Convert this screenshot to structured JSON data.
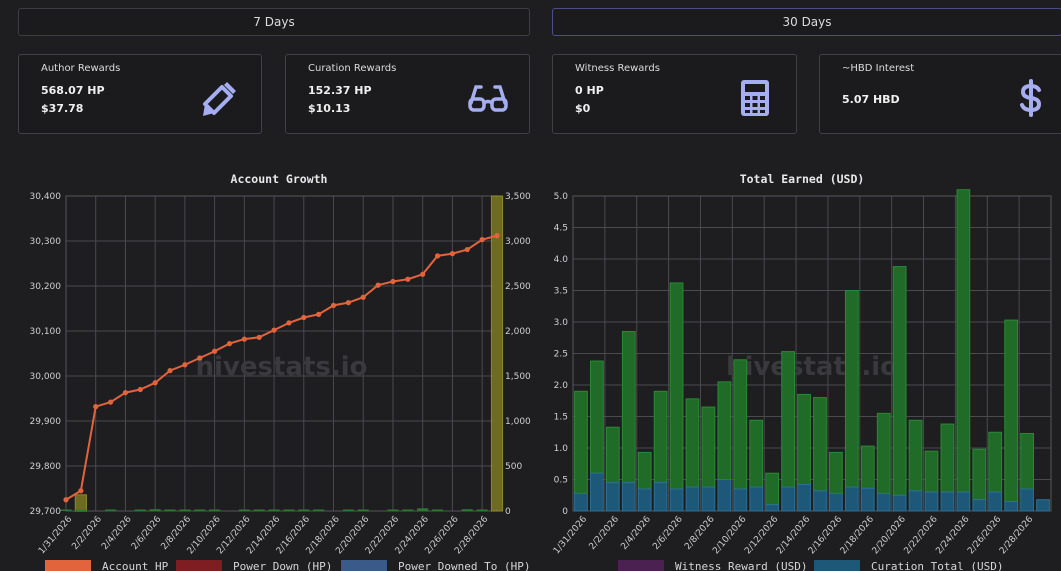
{
  "tabs": [
    {
      "label": "7 Days",
      "active": false
    },
    {
      "label": "30 Days",
      "active": true
    }
  ],
  "cards": [
    {
      "label": "Author Rewards",
      "line1": "568.07 HP",
      "line2": "$37.78",
      "icon": "pencil-icon"
    },
    {
      "label": "Curation Rewards",
      "line1": "152.37 HP",
      "line2": "$10.13",
      "icon": "glasses-icon"
    },
    {
      "label": "Witness Rewards",
      "line1": "0 HP",
      "line2": "$0",
      "icon": "calculator-icon"
    },
    {
      "label": "~HBD Interest",
      "line1": "5.07 HBD",
      "line2": "",
      "icon": "dollar-icon"
    }
  ],
  "colors": {
    "accent_icon": "#a5aef0",
    "account_hp": "#e2643c",
    "power_down": "#7e1e22",
    "power_downed_to": "#3a5a8a",
    "earned_green": "#1f6b27",
    "earned_curation": "#1e5878",
    "witness": "#4a2150",
    "hp_bar_olive": "#77731f"
  },
  "watermark": "hivestats.io",
  "chart_data": [
    {
      "type": "line",
      "title": "Account Growth",
      "x": [
        "1/31/2026",
        "2/1/2026",
        "2/2/2026",
        "2/3/2026",
        "2/4/2026",
        "2/5/2026",
        "2/6/2026",
        "2/7/2026",
        "2/8/2026",
        "2/9/2026",
        "2/10/2026",
        "2/11/2026",
        "2/12/2026",
        "2/13/2026",
        "2/14/2026",
        "2/15/2026",
        "2/16/2026",
        "2/17/2026",
        "2/18/2026",
        "2/19/2026",
        "2/20/2026",
        "2/21/2026",
        "2/22/2026",
        "2/23/2026",
        "2/24/2026",
        "2/25/2026",
        "2/26/2026",
        "2/27/2026",
        "2/28/2026",
        "3/1/2026"
      ],
      "x_tick_labels": [
        "1/31/2026",
        "2/2/2026",
        "2/4/2026",
        "2/6/2026",
        "2/8/2026",
        "2/10/2026",
        "2/12/2026",
        "2/14/2026",
        "2/16/2026",
        "2/18/2026",
        "2/20/2026",
        "2/22/2026",
        "2/24/2026",
        "2/26/2026",
        "2/28/2026"
      ],
      "y_left_ticks": [
        "29,700",
        "29,800",
        "29,900",
        "30,000",
        "30,100",
        "30,200",
        "30,300",
        "30,400"
      ],
      "y_right_ticks": [
        "0",
        "500",
        "1,000",
        "1,500",
        "2,000",
        "2,500",
        "3,000",
        "3,500"
      ],
      "ylim_left": [
        29700,
        30400
      ],
      "ylim_right": [
        0,
        3500
      ],
      "series": [
        {
          "name": "Account HP",
          "axis": "left",
          "values": [
            29725,
            29745,
            29932,
            29942,
            29963,
            29970,
            29985,
            30012,
            30025,
            30040,
            30055,
            30072,
            30082,
            30086,
            30102,
            30118,
            30130,
            30137,
            30157,
            30163,
            30175,
            30202,
            30210,
            30215,
            30226,
            30267,
            30272,
            30281,
            30303,
            30312
          ]
        },
        {
          "name": "Power Down (HP)",
          "axis": "right",
          "values": [
            0,
            0,
            0,
            0,
            0,
            0,
            0,
            0,
            0,
            0,
            0,
            0,
            0,
            0,
            0,
            0,
            0,
            0,
            0,
            0,
            0,
            0,
            0,
            0,
            0,
            0,
            0,
            0,
            0,
            0
          ]
        },
        {
          "name": "Power Downed To (HP)",
          "axis": "right",
          "values": [
            0,
            0,
            0,
            0,
            0,
            0,
            0,
            0,
            0,
            0,
            0,
            0,
            0,
            0,
            0,
            0,
            0,
            0,
            0,
            0,
            0,
            0,
            0,
            0,
            0,
            0,
            0,
            0,
            0,
            0
          ]
        },
        {
          "axis": "right",
          "values": [
            0,
            180,
            0,
            0,
            0,
            0,
            0,
            0,
            0,
            0,
            0,
            0,
            0,
            0,
            0,
            0,
            0,
            0,
            0,
            0,
            0,
            0,
            0,
            0,
            0,
            0,
            0,
            0,
            0,
            3550
          ]
        },
        {
          "axis": "right",
          "values": [
            15,
            5,
            0,
            15,
            0,
            5,
            20,
            10,
            5,
            15,
            10,
            0,
            5,
            10,
            5,
            10,
            15,
            5,
            0,
            10,
            5,
            0,
            5,
            10,
            30,
            5,
            0,
            20,
            5,
            0
          ]
        }
      ],
      "legend": [
        "Account HP",
        "Power Down (HP)",
        "Power Downed To (HP)"
      ],
      "grid": true
    },
    {
      "type": "bar",
      "title": "Total Earned (USD)",
      "x": [
        "1/31/2026",
        "2/1/2026",
        "2/2/2026",
        "2/3/2026",
        "2/4/2026",
        "2/5/2026",
        "2/6/2026",
        "2/7/2026",
        "2/8/2026",
        "2/9/2026",
        "2/10/2026",
        "2/11/2026",
        "2/12/2026",
        "2/13/2026",
        "2/14/2026",
        "2/15/2026",
        "2/16/2026",
        "2/17/2026",
        "2/18/2026",
        "2/19/2026",
        "2/20/2026",
        "2/21/2026",
        "2/22/2026",
        "2/23/2026",
        "2/24/2026",
        "2/25/2026",
        "2/26/2026",
        "2/27/2026",
        "2/28/2026",
        "3/1/2026"
      ],
      "x_tick_labels": [
        "1/31/2026",
        "2/2/2026",
        "2/4/2026",
        "2/6/2026",
        "2/8/2026",
        "2/10/2026",
        "2/12/2026",
        "2/14/2026",
        "2/16/2026",
        "2/18/2026",
        "2/20/2026",
        "2/22/2026",
        "2/24/2026",
        "2/26/2026",
        "2/28/2026"
      ],
      "y_ticks": [
        "0",
        "0.5",
        "1.0",
        "1.5",
        "2.0",
        "2.5",
        "3.0",
        "3.5",
        "4.0",
        "4.5",
        "5.0"
      ],
      "ylim": [
        0,
        5
      ],
      "stacked": true,
      "series": [
        {
          "name": "Curation Total (USD)",
          "values": [
            0.28,
            0.6,
            0.45,
            0.45,
            0.35,
            0.45,
            0.35,
            0.38,
            0.38,
            0.5,
            0.35,
            0.38,
            0.1,
            0.38,
            0.42,
            0.32,
            0.28,
            0.38,
            0.36,
            0.28,
            0.25,
            0.32,
            0.3,
            0.3,
            0.3,
            0.18,
            0.3,
            0.15,
            0.35,
            0.18
          ]
        },
        {
          "values": [
            1.62,
            1.78,
            0.88,
            2.4,
            0.58,
            1.45,
            3.27,
            1.4,
            1.27,
            1.55,
            2.05,
            1.06,
            0.5,
            2.15,
            1.43,
            1.48,
            0.65,
            3.12,
            0.67,
            1.27,
            3.63,
            1.12,
            0.65,
            1.08,
            4.8,
            0.8,
            0.95,
            2.88,
            0.88,
            0
          ]
        },
        {
          "name": "Witness Reward (USD)",
          "values": [
            0,
            0,
            0,
            0,
            0,
            0,
            0,
            0,
            0,
            0,
            0,
            0,
            0,
            0,
            0,
            0,
            0,
            0,
            0,
            0,
            0,
            0,
            0,
            0,
            0,
            0,
            0,
            0,
            0,
            0
          ]
        }
      ],
      "legend": [
        "Witness Reward (USD)",
        "Curation Total (USD)"
      ],
      "grid": true
    }
  ]
}
